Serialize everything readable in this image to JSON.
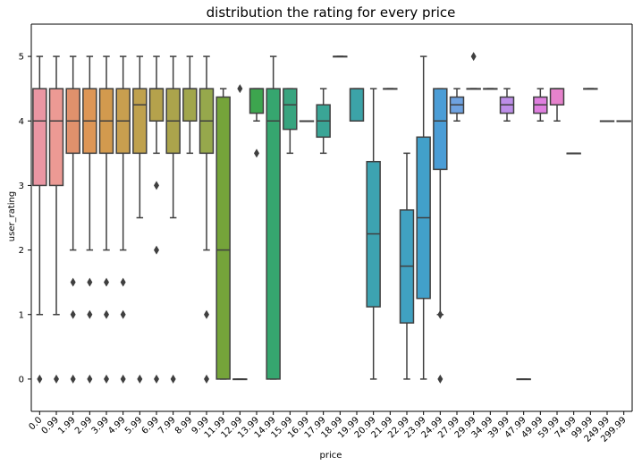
{
  "chart_data": {
    "type": "box",
    "title": "distribution the rating for every price",
    "xlabel": "price",
    "ylabel": "user_rating",
    "ylim": [
      -0.5,
      5.5
    ],
    "yticks": [
      0,
      1,
      2,
      3,
      4,
      5
    ],
    "grid": false,
    "categories": [
      "0.0",
      "0.99",
      "1.99",
      "2.99",
      "3.99",
      "4.99",
      "5.99",
      "6.99",
      "7.99",
      "8.99",
      "9.99",
      "11.99",
      "12.99",
      "13.99",
      "14.99",
      "15.99",
      "16.99",
      "17.99",
      "18.99",
      "19.99",
      "20.99",
      "21.99",
      "22.99",
      "23.99",
      "24.99",
      "27.99",
      "29.99",
      "34.99",
      "39.99",
      "47.99",
      "49.99",
      "59.99",
      "74.99",
      "99.99",
      "249.99",
      "299.99"
    ],
    "boxes": [
      {
        "q1": 3.0,
        "median": 4.0,
        "q3": 4.5,
        "whisker_low": 1.0,
        "whisker_high": 5.0,
        "outliers": [
          0.0
        ],
        "color": "#ea96a3"
      },
      {
        "q1": 3.0,
        "median": 4.0,
        "q3": 4.5,
        "whisker_low": 1.0,
        "whisker_high": 5.0,
        "outliers": [
          0.0
        ],
        "color": "#ec9a94"
      },
      {
        "q1": 3.5,
        "median": 4.0,
        "q3": 4.5,
        "whisker_low": 2.0,
        "whisker_high": 5.0,
        "outliers": [
          0.0,
          1.0,
          1.5
        ],
        "color": "#e0916c"
      },
      {
        "q1": 3.5,
        "median": 4.0,
        "q3": 4.5,
        "whisker_low": 2.0,
        "whisker_high": 5.0,
        "outliers": [
          0.0,
          1.0,
          1.5
        ],
        "color": "#dd9656"
      },
      {
        "q1": 3.5,
        "median": 4.0,
        "q3": 4.5,
        "whisker_low": 2.0,
        "whisker_high": 5.0,
        "outliers": [
          0.0,
          1.0,
          1.5
        ],
        "color": "#d29a4e"
      },
      {
        "q1": 3.5,
        "median": 4.0,
        "q3": 4.5,
        "whisker_low": 2.0,
        "whisker_high": 5.0,
        "outliers": [
          0.0,
          1.0,
          1.5
        ],
        "color": "#c89f4f"
      },
      {
        "q1": 3.5,
        "median": 4.25,
        "q3": 4.5,
        "whisker_low": 2.5,
        "whisker_high": 5.0,
        "outliers": [
          0.0
        ],
        "color": "#bfa14d"
      },
      {
        "q1": 4.0,
        "median": 4.5,
        "q3": 4.5,
        "whisker_low": 3.5,
        "whisker_high": 5.0,
        "outliers": [
          0.0,
          2.0,
          3.0
        ],
        "color": "#b5a24c"
      },
      {
        "q1": 3.5,
        "median": 4.0,
        "q3": 4.5,
        "whisker_low": 2.5,
        "whisker_high": 5.0,
        "outliers": [
          0.0
        ],
        "color": "#aba44c"
      },
      {
        "q1": 4.0,
        "median": 4.5,
        "q3": 4.5,
        "whisker_low": 3.5,
        "whisker_high": 5.0,
        "outliers": [],
        "color": "#a1a64c"
      },
      {
        "q1": 3.5,
        "median": 4.0,
        "q3": 4.5,
        "whisker_low": 2.0,
        "whisker_high": 5.0,
        "outliers": [
          0.0,
          1.0
        ],
        "color": "#96a84c"
      },
      {
        "q1": 0.0,
        "median": 2.0,
        "q3": 4.37,
        "whisker_low": 0.0,
        "whisker_high": 4.5,
        "outliers": [],
        "color": "#75a43a"
      },
      {
        "q1": 0.0,
        "median": 0.0,
        "q3": 0.0,
        "whisker_low": 0.0,
        "whisker_high": 0.0,
        "outliers": [
          4.5
        ],
        "color": "#5aa43a"
      },
      {
        "q1": 4.12,
        "median": 4.5,
        "q3": 4.5,
        "whisker_low": 4.0,
        "whisker_high": 4.5,
        "outliers": [
          3.5
        ],
        "color": "#3da54e"
      },
      {
        "q1": 0.0,
        "median": 4.0,
        "q3": 4.5,
        "whisker_low": 0.0,
        "whisker_high": 5.0,
        "outliers": [],
        "color": "#36a66f"
      },
      {
        "q1": 3.87,
        "median": 4.25,
        "q3": 4.5,
        "whisker_low": 3.5,
        "whisker_high": 4.5,
        "outliers": [],
        "color": "#38a47f"
      },
      {
        "q1": 4.0,
        "median": 4.0,
        "q3": 4.0,
        "whisker_low": 4.0,
        "whisker_high": 4.0,
        "outliers": [],
        "color": "#39a58b"
      },
      {
        "q1": 3.75,
        "median": 4.0,
        "q3": 4.25,
        "whisker_low": 3.5,
        "whisker_high": 4.5,
        "outliers": [],
        "color": "#3aa596"
      },
      {
        "q1": 5.0,
        "median": 5.0,
        "q3": 5.0,
        "whisker_low": 5.0,
        "whisker_high": 5.0,
        "outliers": [],
        "color": "#3ba59f"
      },
      {
        "q1": 4.0,
        "median": 4.5,
        "q3": 4.5,
        "whisker_low": 4.0,
        "whisker_high": 4.5,
        "outliers": [],
        "color": "#3ca3a8"
      },
      {
        "q1": 1.12,
        "median": 2.25,
        "q3": 3.37,
        "whisker_low": 0.0,
        "whisker_high": 4.5,
        "outliers": [],
        "color": "#3da3b1"
      },
      {
        "q1": 4.5,
        "median": 4.5,
        "q3": 4.5,
        "whisker_low": 4.5,
        "whisker_high": 4.5,
        "outliers": [],
        "color": "#3ea2ba"
      },
      {
        "q1": 0.87,
        "median": 1.75,
        "q3": 2.62,
        "whisker_low": 0.0,
        "whisker_high": 3.5,
        "outliers": [],
        "color": "#40a1c1"
      },
      {
        "q1": 1.25,
        "median": 2.5,
        "q3": 3.75,
        "whisker_low": 0.0,
        "whisker_high": 5.0,
        "outliers": [],
        "color": "#42a0ca"
      },
      {
        "q1": 3.25,
        "median": 4.0,
        "q3": 4.5,
        "whisker_low": 1.0,
        "whisker_high": 4.5,
        "outliers": [
          1.0,
          0.0
        ],
        "color": "#4b9dd6"
      },
      {
        "q1": 4.12,
        "median": 4.25,
        "q3": 4.37,
        "whisker_low": 4.0,
        "whisker_high": 4.5,
        "outliers": [],
        "color": "#6fa2e0"
      },
      {
        "q1": 4.5,
        "median": 4.5,
        "q3": 4.5,
        "whisker_low": 4.5,
        "whisker_high": 4.5,
        "outliers": [
          5.0
        ],
        "color": "#8d9ce6"
      },
      {
        "q1": 4.5,
        "median": 4.5,
        "q3": 4.5,
        "whisker_low": 4.5,
        "whisker_high": 4.5,
        "outliers": [],
        "color": "#a596e8"
      },
      {
        "q1": 4.12,
        "median": 4.25,
        "q3": 4.37,
        "whisker_low": 4.0,
        "whisker_high": 4.5,
        "outliers": [],
        "color": "#bd8ee8"
      },
      {
        "q1": 0.0,
        "median": 0.0,
        "q3": 0.0,
        "whisker_low": 0.0,
        "whisker_high": 0.0,
        "outliers": [],
        "color": "#d287e6"
      },
      {
        "q1": 4.12,
        "median": 4.25,
        "q3": 4.37,
        "whisker_low": 4.0,
        "whisker_high": 4.5,
        "outliers": [],
        "color": "#df7fdf"
      },
      {
        "q1": 4.25,
        "median": 4.5,
        "q3": 4.5,
        "whisker_low": 4.0,
        "whisker_high": 4.5,
        "outliers": [],
        "color": "#e682cc"
      },
      {
        "q1": 3.5,
        "median": 3.5,
        "q3": 3.5,
        "whisker_low": 3.5,
        "whisker_high": 3.5,
        "outliers": [],
        "color": "#e889bd"
      },
      {
        "q1": 4.5,
        "median": 4.5,
        "q3": 4.5,
        "whisker_low": 4.5,
        "whisker_high": 4.5,
        "outliers": [],
        "color": "#e98fb0"
      },
      {
        "q1": 4.0,
        "median": 4.0,
        "q3": 4.0,
        "whisker_low": 4.0,
        "whisker_high": 4.0,
        "outliers": [],
        "color": "#ea92a8"
      },
      {
        "q1": 4.0,
        "median": 4.0,
        "q3": 4.0,
        "whisker_low": 4.0,
        "whisker_high": 4.0,
        "outliers": [],
        "color": "#ea95a4"
      }
    ]
  }
}
